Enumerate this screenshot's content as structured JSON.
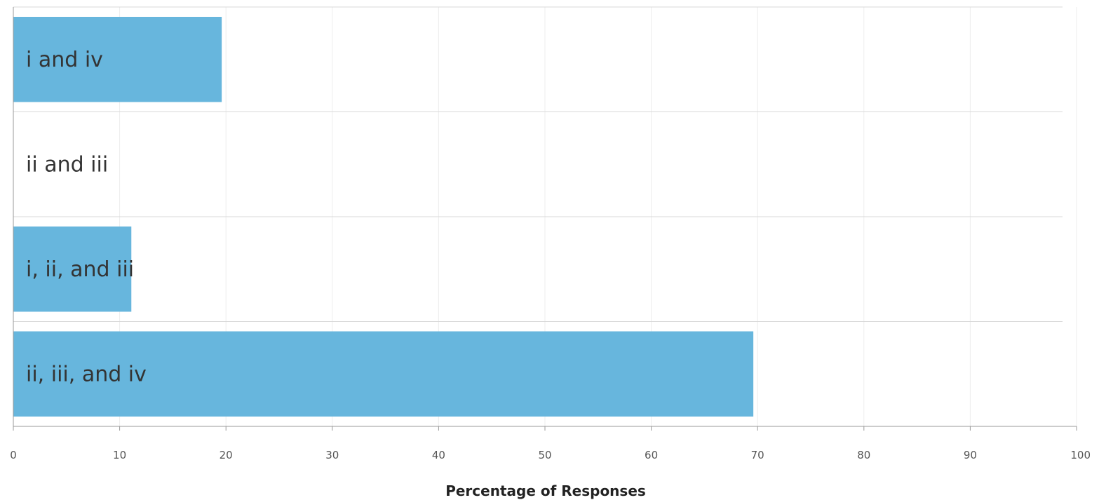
{
  "chart_data": {
    "type": "bar",
    "orientation": "horizontal",
    "categories": [
      "i and iv",
      "ii and iii",
      "i, ii, and iii",
      "ii, iii, and iv"
    ],
    "values": [
      19.6,
      0,
      11.1,
      69.6
    ],
    "title": "",
    "xlabel": "Percentage of Responses",
    "ylabel": "",
    "xlim": [
      0,
      100
    ],
    "xticks": [
      0,
      10,
      20,
      30,
      40,
      50,
      60,
      70,
      80,
      90,
      100
    ],
    "grid": true,
    "bar_color": "#67b6dd",
    "category_label_position": "inside-bar-left"
  }
}
